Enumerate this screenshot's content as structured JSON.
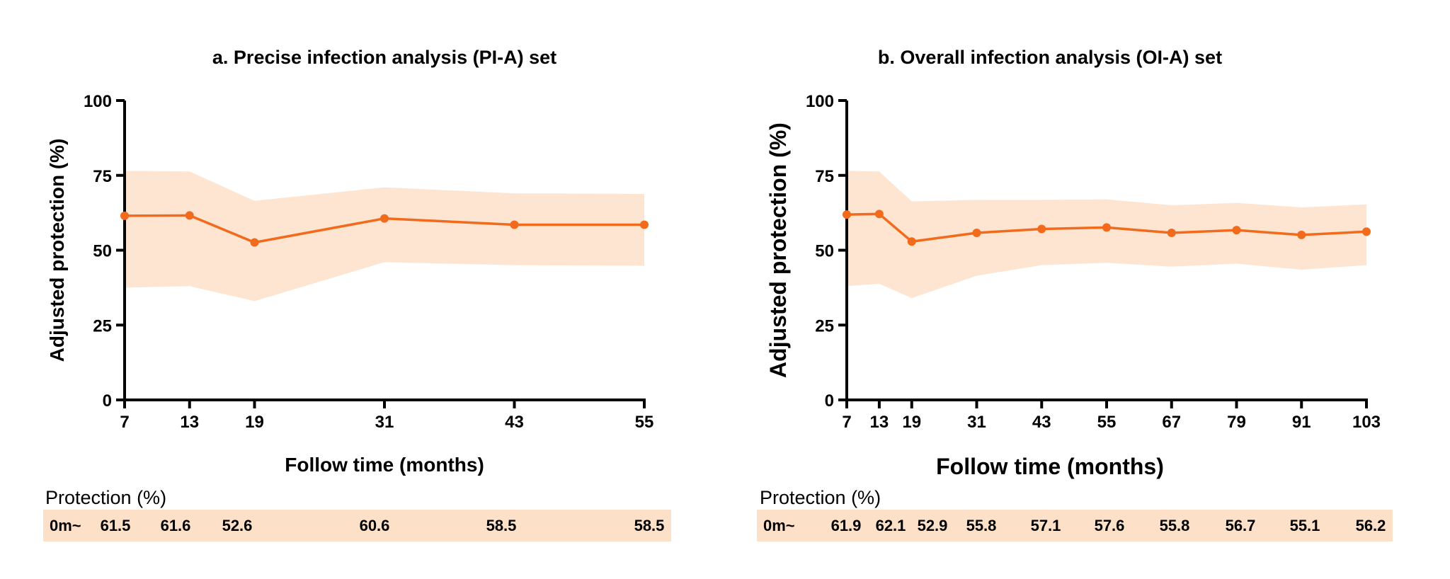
{
  "colors": {
    "line": "#f26b1d",
    "band": "#fde5d2",
    "row_bg": "#fde0c8",
    "axis": "#000000"
  },
  "chart_data": [
    {
      "type": "line",
      "title": "a. Precise infection analysis (PI-A) set",
      "xlabel": "Follow time (months)",
      "ylabel": "Adjusted protection (%)",
      "x": [
        7,
        13,
        19,
        31,
        43,
        55
      ],
      "xlim": [
        7,
        55
      ],
      "ylim": [
        0,
        100
      ],
      "yticks": [
        0,
        25,
        50,
        75,
        100
      ],
      "series": [
        {
          "name": "Adjusted protection",
          "values": [
            61.5,
            61.6,
            52.6,
            60.6,
            58.5,
            58.5
          ],
          "ci_upper": [
            76.5,
            76.3,
            66.5,
            71.0,
            69.0,
            68.8
          ],
          "ci_lower": [
            37.5,
            38.0,
            33.0,
            46.0,
            45.0,
            44.8
          ]
        }
      ],
      "row": {
        "caption": "Protection (%)",
        "first_cell": "0m~",
        "values": [
          "61.5",
          "61.6",
          "52.6",
          "60.6",
          "58.5",
          "58.5"
        ]
      }
    },
    {
      "type": "line",
      "title": "b. Overall infection analysis (OI-A) set",
      "xlabel": "Follow time (months)",
      "ylabel": "Adjusted protection (%)",
      "x": [
        7,
        13,
        19,
        31,
        43,
        55,
        67,
        79,
        91,
        103
      ],
      "xlim": [
        7,
        103
      ],
      "ylim": [
        0,
        100
      ],
      "yticks": [
        0,
        25,
        50,
        75,
        100
      ],
      "series": [
        {
          "name": "Adjusted protection",
          "values": [
            61.9,
            62.1,
            52.9,
            55.8,
            57.1,
            57.6,
            55.8,
            56.7,
            55.1,
            56.2
          ],
          "ci_upper": [
            76.5,
            76.3,
            66.3,
            66.8,
            66.8,
            67.0,
            65.0,
            65.8,
            64.3,
            65.3
          ],
          "ci_lower": [
            38.0,
            38.8,
            34.0,
            41.5,
            45.0,
            45.8,
            44.5,
            45.5,
            43.5,
            45.0
          ]
        }
      ],
      "row": {
        "caption": "Protection (%)",
        "first_cell": "0m~",
        "values": [
          "61.9",
          "62.1",
          "52.9",
          "55.8",
          "57.1",
          "57.6",
          "55.8",
          "56.7",
          "55.1",
          "56.2"
        ]
      }
    }
  ]
}
